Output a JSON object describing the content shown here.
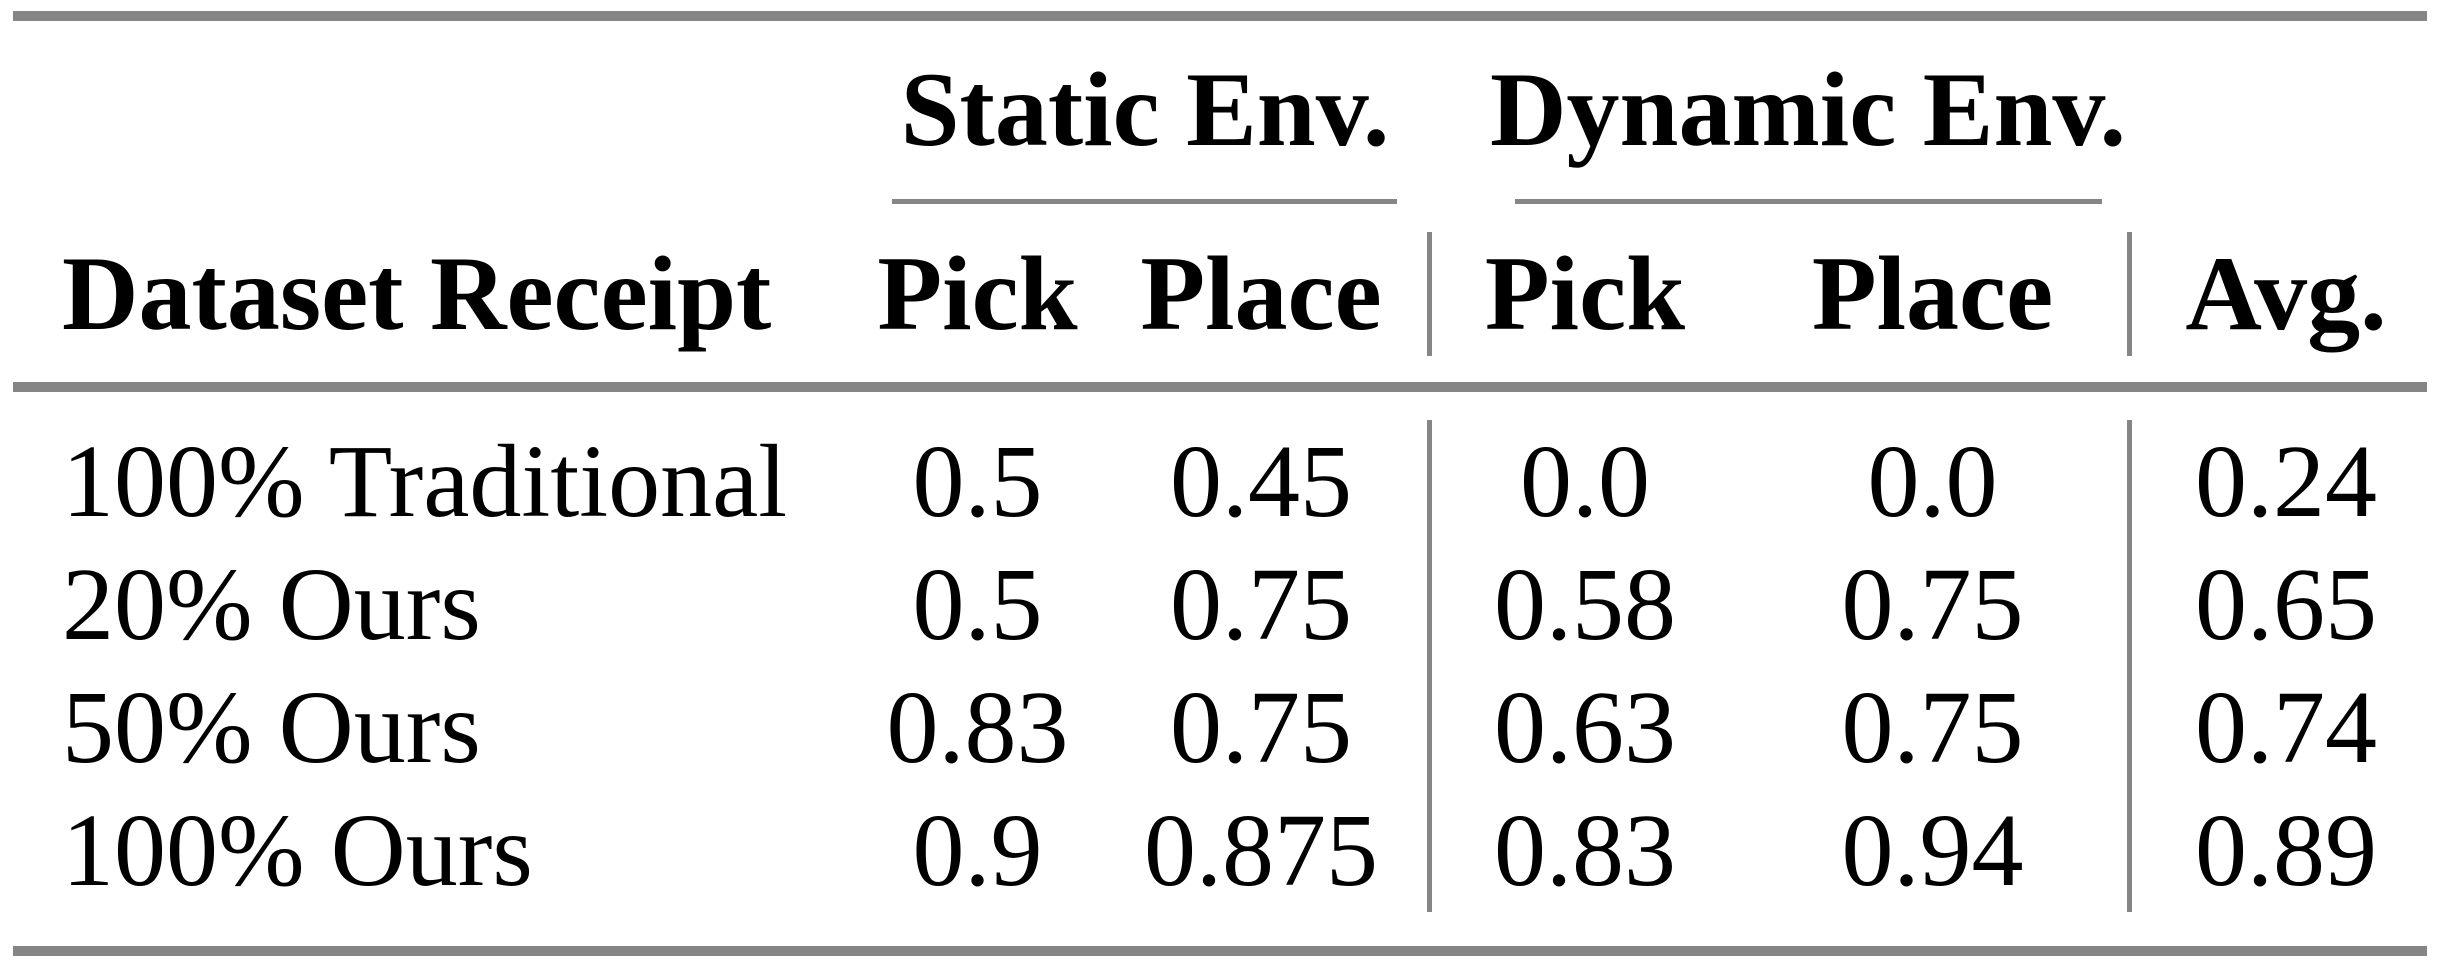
{
  "page": {
    "background": "#ffffff",
    "text_color": "#000000",
    "rule_color": "#858585"
  },
  "table": {
    "column_groups": [
      {
        "label": "Static Env."
      },
      {
        "label": "Dynamic Env."
      }
    ],
    "columns": [
      "Dataset Receipt",
      "Pick",
      "Place",
      "Pick",
      "Place",
      "Avg."
    ],
    "rows": [
      {
        "label": "100% Traditional",
        "values": [
          "0.5",
          "0.45",
          "0.0",
          "0.0",
          "0.24"
        ]
      },
      {
        "label": "20% Ours",
        "values": [
          "0.5",
          "0.75",
          "0.58",
          "0.75",
          "0.65"
        ]
      },
      {
        "label": "50% Ours",
        "values": [
          "0.83",
          "0.75",
          "0.63",
          "0.75",
          "0.74"
        ]
      },
      {
        "label": "100% Ours",
        "values": [
          "0.9",
          "0.875",
          "0.83",
          "0.94",
          "0.89"
        ]
      }
    ]
  },
  "chart_data": {
    "type": "table",
    "column_groups": [
      "Static Env.",
      "Dynamic Env."
    ],
    "columns": [
      "Dataset Receipt",
      "Static Pick",
      "Static Place",
      "Dynamic Pick",
      "Dynamic Place",
      "Avg."
    ],
    "rows": [
      [
        "100% Traditional",
        0.5,
        0.45,
        0.0,
        0.0,
        0.24
      ],
      [
        "20% Ours",
        0.5,
        0.75,
        0.58,
        0.75,
        0.65
      ],
      [
        "50% Ours",
        0.83,
        0.75,
        0.63,
        0.75,
        0.74
      ],
      [
        "100% Ours",
        0.9,
        0.875,
        0.83,
        0.94,
        0.89
      ]
    ]
  }
}
